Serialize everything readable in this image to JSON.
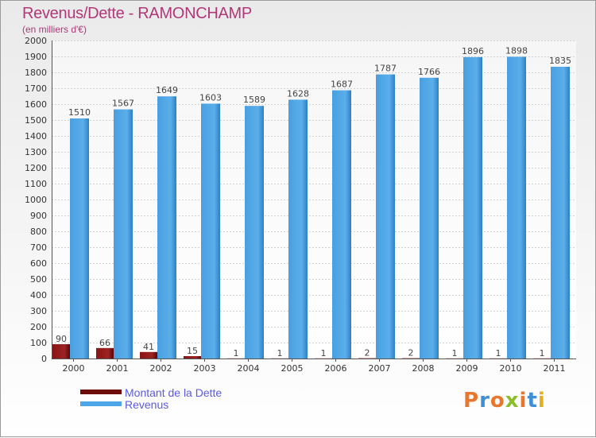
{
  "title": "Revenus/Dette - RAMONCHAMP",
  "subtitle": "(en milliers d'€)",
  "legend": {
    "debt": "Montant de la Dette",
    "revenue": "Revenus"
  },
  "logo": "Proxiti",
  "colors": {
    "debt": "#7a0c0c",
    "revenue": "#4da6e8",
    "title": "#b03878",
    "legend_text": "#5a5ae0"
  },
  "chart_data": {
    "type": "bar",
    "title": "Revenus/Dette - RAMONCHAMP",
    "ylabel": "(en milliers d'€)",
    "xlabel": "",
    "categories": [
      "2000",
      "2001",
      "2002",
      "2003",
      "2004",
      "2005",
      "2006",
      "2007",
      "2008",
      "2009",
      "2010",
      "2011"
    ],
    "series": [
      {
        "name": "Montant de la Dette",
        "values": [
          90,
          66,
          41,
          15,
          1,
          1,
          1,
          2,
          2,
          1,
          1,
          1
        ]
      },
      {
        "name": "Revenus",
        "values": [
          1510,
          1567,
          1649,
          1603,
          1589,
          1628,
          1687,
          1787,
          1766,
          1896,
          1898,
          1835
        ]
      }
    ],
    "ylim": [
      0,
      2000
    ],
    "yticks": [
      0,
      100,
      200,
      300,
      400,
      500,
      600,
      700,
      800,
      900,
      1000,
      1100,
      1200,
      1300,
      1400,
      1500,
      1600,
      1700,
      1800,
      1900,
      2000
    ],
    "grid": true,
    "legend_position": "bottom-left"
  }
}
